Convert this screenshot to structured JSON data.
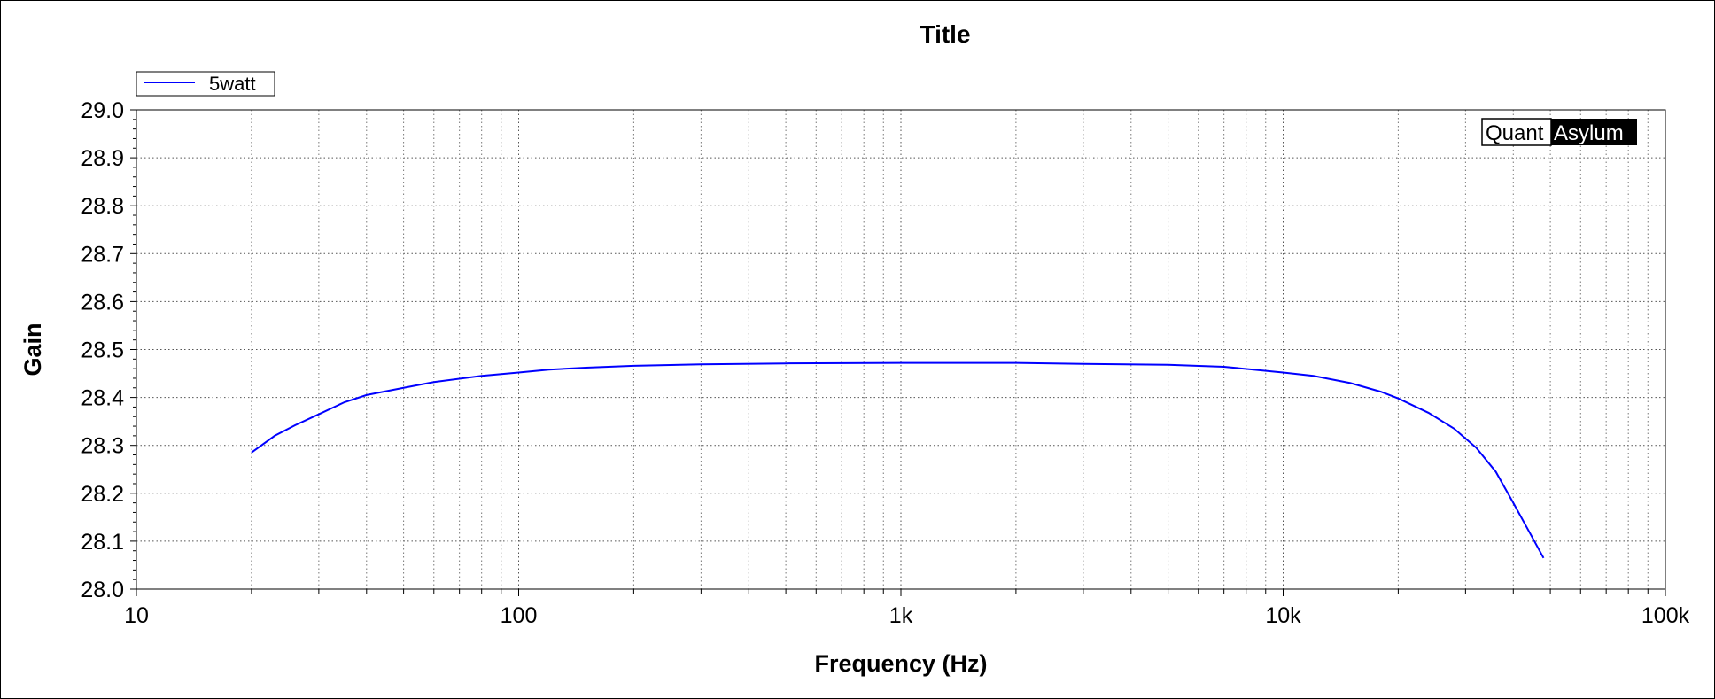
{
  "chart_data": {
    "type": "line",
    "title": "Title",
    "xlabel": "Frequency (Hz)",
    "ylabel": "Gain",
    "x_scale": "log",
    "xlim": [
      10,
      100000
    ],
    "ylim": [
      28.0,
      29.0
    ],
    "x_ticks": [
      10,
      100,
      1000,
      10000,
      100000
    ],
    "x_tick_labels": [
      "10",
      "100",
      "1k",
      "10k",
      "100k"
    ],
    "y_ticks": [
      28.0,
      28.1,
      28.2,
      28.3,
      28.4,
      28.5,
      28.6,
      28.7,
      28.8,
      28.9,
      29.0
    ],
    "y_tick_labels": [
      "28.0",
      "28.1",
      "28.2",
      "28.3",
      "28.4",
      "28.5",
      "28.6",
      "28.7",
      "28.8",
      "28.9",
      "29.0"
    ],
    "grid": true,
    "legend_position": "top-left",
    "series": [
      {
        "name": "5watt",
        "color": "#0000ff",
        "x": [
          20,
          23,
          26,
          30,
          35,
          40,
          50,
          60,
          80,
          100,
          120,
          150,
          200,
          300,
          500,
          1000,
          2000,
          3000,
          5000,
          7000,
          10000,
          12000,
          15000,
          18000,
          20000,
          24000,
          28000,
          32000,
          36000,
          40000,
          44000,
          48000
        ],
        "values": [
          28.285,
          28.32,
          28.342,
          28.365,
          28.39,
          28.405,
          28.42,
          28.432,
          28.445,
          28.452,
          28.458,
          28.462,
          28.466,
          28.469,
          28.471,
          28.472,
          28.472,
          28.47,
          28.468,
          28.464,
          28.452,
          28.445,
          28.43,
          28.412,
          28.398,
          28.368,
          28.335,
          28.295,
          28.245,
          28.18,
          28.12,
          28.065
        ]
      }
    ],
    "watermark": {
      "left": "Quant",
      "right": "Asylum"
    }
  }
}
